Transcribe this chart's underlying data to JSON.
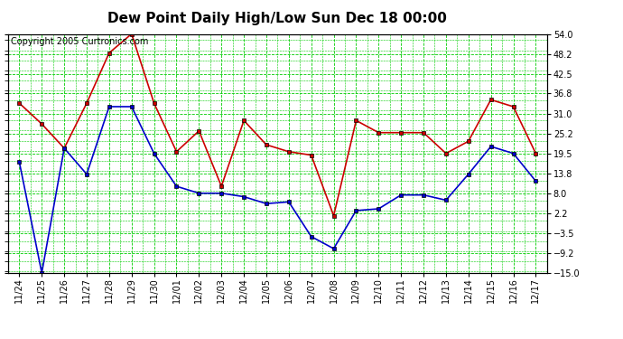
{
  "title": "Dew Point Daily High/Low Sun Dec 18 00:00",
  "copyright": "Copyright 2005 Curtronics.com",
  "x_labels": [
    "11/24",
    "11/25",
    "11/26",
    "11/27",
    "11/28",
    "11/29",
    "11/30",
    "12/01",
    "12/02",
    "12/03",
    "12/04",
    "12/05",
    "12/06",
    "12/07",
    "12/08",
    "12/09",
    "12/10",
    "12/11",
    "12/12",
    "12/13",
    "12/14",
    "12/15",
    "12/16",
    "12/17"
  ],
  "high_values": [
    34.0,
    28.0,
    21.0,
    34.0,
    48.5,
    54.0,
    34.0,
    20.0,
    26.0,
    10.0,
    29.0,
    22.0,
    20.0,
    19.0,
    1.5,
    29.0,
    25.5,
    25.5,
    25.5,
    19.5,
    23.0,
    35.0,
    33.0,
    19.5
  ],
  "low_values": [
    17.0,
    -15.0,
    21.0,
    13.5,
    33.0,
    33.0,
    19.5,
    10.0,
    8.0,
    8.0,
    7.0,
    5.0,
    5.5,
    -4.5,
    -8.0,
    3.0,
    3.5,
    7.5,
    7.5,
    6.0,
    13.5,
    21.5,
    19.5,
    11.5
  ],
  "ylim_min": -15.0,
  "ylim_max": 54.0,
  "yticks": [
    -15.0,
    -9.2,
    -3.5,
    2.2,
    8.0,
    13.8,
    19.5,
    25.2,
    31.0,
    36.8,
    42.5,
    48.2,
    54.0
  ],
  "high_color": "#cc0000",
  "low_color": "#0000cc",
  "marker_edge_color": "#000000",
  "bg_color": "#ffffff",
  "grid_color": "#00cc00",
  "border_color": "#000000",
  "title_fontsize": 11,
  "axis_fontsize": 7,
  "copyright_fontsize": 7
}
